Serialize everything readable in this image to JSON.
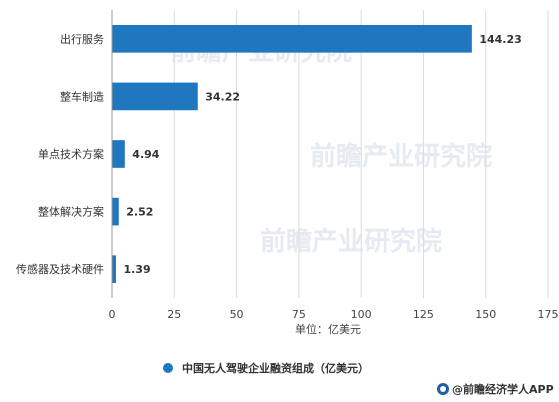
{
  "chart_data": {
    "type": "bar",
    "orientation": "horizontal",
    "categories": [
      "出行服务",
      "整车制造",
      "单点技术方案",
      "整体解决方案",
      "传感器及技术硬件"
    ],
    "values": [
      144.23,
      34.22,
      4.94,
      2.52,
      1.39
    ],
    "value_labels": [
      "144.23",
      "34.22",
      "4.94",
      "2.52",
      "1.39"
    ],
    "xlabel": "单位：亿美元",
    "xlim": [
      0,
      175
    ],
    "xticks": [
      0,
      25,
      50,
      75,
      100,
      125,
      150,
      175
    ],
    "grid": true,
    "legend": {
      "placement": "bottom",
      "entries": [
        "中国无人驾驶企业融资组成（亿美元）"
      ]
    },
    "bar_color": "#1f77c0"
  },
  "watermark": {
    "text": "前瞻产业研究院",
    "color": "#e6ebf2"
  },
  "credit": {
    "text": "@前瞻经济学人APP",
    "icon": "qianzhan-logo-icon"
  }
}
